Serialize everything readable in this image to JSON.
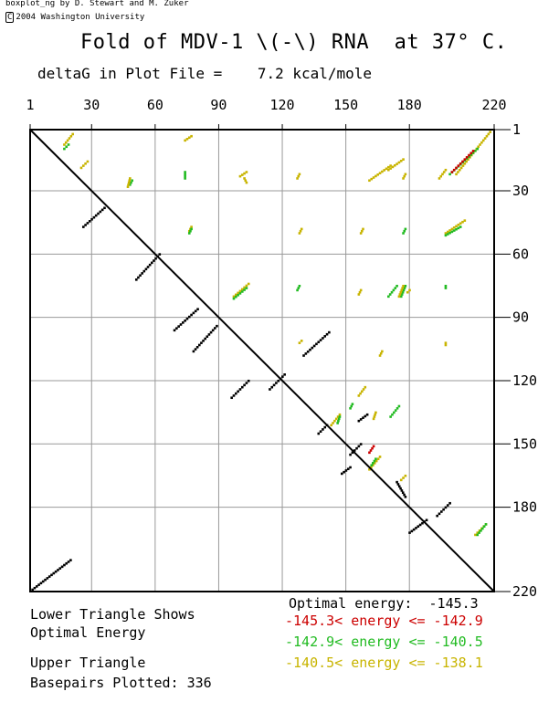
{
  "header": {
    "credit": "boxplot_ng by D. Stewart and M. Zuker",
    "copyright_symbol": "C",
    "copyright": "2004 Washington University",
    "title": "Fold of MDV-1 \\(-\\) RNA  at 37° C.",
    "deltag_label": "deltaG in Plot File =",
    "deltag_value": "7.2 kcal/mole"
  },
  "legend": {
    "lower_1": "Lower Triangle Shows",
    "lower_2": "Optimal Energy",
    "upper_1": "Upper Triangle",
    "basepairs_label": "Basepairs Plotted:",
    "basepairs_value": "336",
    "optimal": "Optimal energy:  -145.3",
    "bands": [
      {
        "text": "-145.3< energy <= -142.9",
        "color": "#cc0000"
      },
      {
        "text": "-142.9< energy <= -140.5",
        "color": "#22bb22"
      },
      {
        "text": "-140.5< energy <= -138.1",
        "color": "#c8b400"
      }
    ]
  },
  "chart_data": {
    "type": "scatter",
    "title": "Fold of MDV-1 \\(-\\) RNA  at 37° C.",
    "xlim": [
      1,
      220
    ],
    "ylim": [
      1,
      220
    ],
    "x_ticks": [
      1,
      30,
      60,
      90,
      120,
      150,
      180,
      220
    ],
    "y_ticks": [
      1,
      30,
      60,
      90,
      120,
      150,
      180,
      220
    ],
    "colors": {
      "optimal": "#000000",
      "red": "#cc0000",
      "green": "#22bb22",
      "yellow": "#c8b400",
      "grid": "#999999"
    },
    "optimal_helices": [
      [
        [
          2,
          219
        ],
        [
          20,
          205
        ]
      ],
      [
        [
          26,
          47
        ],
        [
          36,
          38
        ]
      ],
      [
        [
          51,
          72
        ],
        [
          62,
          60
        ]
      ],
      [
        [
          69,
          96
        ],
        [
          80,
          86
        ]
      ],
      [
        [
          78,
          106
        ],
        [
          89,
          94
        ]
      ],
      [
        [
          96,
          128
        ],
        [
          104,
          120
        ]
      ],
      [
        [
          114,
          124
        ],
        [
          121,
          117
        ]
      ],
      [
        [
          130,
          108
        ],
        [
          142,
          97
        ]
      ],
      [
        [
          137,
          145
        ],
        [
          141,
          141
        ]
      ],
      [
        [
          148,
          164
        ],
        [
          152,
          161
        ]
      ],
      [
        [
          152,
          155
        ],
        [
          157,
          150
        ]
      ],
      [
        [
          156,
          139
        ],
        [
          160,
          136
        ]
      ],
      [
        [
          174,
          168
        ],
        [
          178,
          175
        ]
      ],
      [
        [
          180,
          192
        ],
        [
          188,
          186
        ]
      ],
      [
        [
          193,
          184
        ],
        [
          199,
          178
        ]
      ]
    ],
    "upper_helices": [
      {
        "color": "yellow",
        "points": [
          [
            17,
            8
          ],
          [
            21,
            3
          ]
        ]
      },
      {
        "color": "green",
        "points": [
          [
            17,
            10
          ],
          [
            19,
            8
          ]
        ]
      },
      {
        "color": "yellow",
        "points": [
          [
            25,
            19
          ],
          [
            28,
            16
          ]
        ]
      },
      {
        "color": "yellow",
        "points": [
          [
            74,
            6
          ],
          [
            77,
            4
          ]
        ]
      },
      {
        "color": "green",
        "points": [
          [
            74,
            24
          ],
          [
            74,
            21
          ]
        ]
      },
      {
        "color": "yellow",
        "points": [
          [
            100,
            23
          ],
          [
            103,
            21
          ]
        ]
      },
      {
        "color": "yellow",
        "points": [
          [
            102,
            24
          ],
          [
            103,
            26
          ]
        ]
      },
      {
        "color": "yellow",
        "points": [
          [
            127,
            24
          ],
          [
            128,
            22
          ]
        ]
      },
      {
        "color": "green",
        "points": [
          [
            48,
            27
          ],
          [
            49,
            25
          ]
        ]
      },
      {
        "color": "yellow",
        "points": [
          [
            47,
            28
          ],
          [
            48,
            24
          ]
        ]
      },
      {
        "color": "yellow",
        "points": [
          [
            161,
            25
          ],
          [
            171,
            18
          ]
        ]
      },
      {
        "color": "yellow",
        "points": [
          [
            170,
            20
          ],
          [
            177,
            15
          ]
        ]
      },
      {
        "color": "yellow",
        "points": [
          [
            177,
            24
          ],
          [
            178,
            22
          ]
        ]
      },
      {
        "color": "yellow",
        "points": [
          [
            194,
            24
          ],
          [
            197,
            20
          ]
        ]
      },
      {
        "color": "yellow",
        "points": [
          [
            202,
            22
          ],
          [
            218,
            2
          ]
        ]
      },
      {
        "color": "green",
        "points": [
          [
            199,
            22
          ],
          [
            212,
            10
          ]
        ]
      },
      {
        "color": "red",
        "points": [
          [
            200,
            21
          ],
          [
            210,
            11
          ]
        ]
      },
      {
        "color": "yellow",
        "points": [
          [
            76,
            49
          ],
          [
            77,
            47
          ]
        ]
      },
      {
        "color": "green",
        "points": [
          [
            76,
            50
          ],
          [
            77,
            48
          ]
        ]
      },
      {
        "color": "yellow",
        "points": [
          [
            128,
            50
          ],
          [
            129,
            48
          ]
        ]
      },
      {
        "color": "yellow",
        "points": [
          [
            157,
            50
          ],
          [
            158,
            48
          ]
        ]
      },
      {
        "color": "green",
        "points": [
          [
            177,
            50
          ],
          [
            178,
            48
          ]
        ]
      },
      {
        "color": "yellow",
        "points": [
          [
            197,
            50
          ],
          [
            206,
            44
          ]
        ]
      },
      {
        "color": "green",
        "points": [
          [
            197,
            51
          ],
          [
            204,
            47
          ]
        ]
      },
      {
        "color": "yellow",
        "points": [
          [
            97,
            80
          ],
          [
            104,
            74
          ]
        ]
      },
      {
        "color": "green",
        "points": [
          [
            97,
            81
          ],
          [
            103,
            76
          ]
        ]
      },
      {
        "color": "green",
        "points": [
          [
            127,
            77
          ],
          [
            128,
            75
          ]
        ]
      },
      {
        "color": "yellow",
        "points": [
          [
            156,
            79
          ],
          [
            157,
            77
          ]
        ]
      },
      {
        "color": "green",
        "points": [
          [
            170,
            80
          ],
          [
            174,
            75
          ]
        ]
      },
      {
        "color": "green",
        "points": [
          [
            176,
            80
          ],
          [
            178,
            75
          ]
        ]
      },
      {
        "color": "yellow",
        "points": [
          [
            175,
            80
          ],
          [
            177,
            75
          ]
        ]
      },
      {
        "color": "yellow",
        "points": [
          [
            179,
            78
          ],
          [
            180,
            77
          ]
        ]
      },
      {
        "color": "green",
        "points": [
          [
            197,
            76
          ],
          [
            197,
            75
          ]
        ]
      },
      {
        "color": "yellow",
        "points": [
          [
            166,
            108
          ],
          [
            167,
            106
          ]
        ]
      },
      {
        "color": "yellow",
        "points": [
          [
            197,
            103
          ],
          [
            197,
            102
          ]
        ]
      },
      {
        "color": "yellow",
        "points": [
          [
            128,
            102
          ],
          [
            129,
            101
          ]
        ]
      },
      {
        "color": "yellow",
        "points": [
          [
            156,
            127
          ],
          [
            159,
            123
          ]
        ]
      },
      {
        "color": "green",
        "points": [
          [
            152,
            133
          ],
          [
            153,
            131
          ]
        ]
      },
      {
        "color": "yellow",
        "points": [
          [
            143,
            141
          ],
          [
            147,
            136
          ]
        ]
      },
      {
        "color": "green",
        "points": [
          [
            146,
            140
          ],
          [
            147,
            137
          ]
        ]
      },
      {
        "color": "yellow",
        "points": [
          [
            163,
            138
          ],
          [
            164,
            135
          ]
        ]
      },
      {
        "color": "green",
        "points": [
          [
            171,
            137
          ],
          [
            175,
            132
          ]
        ]
      },
      {
        "color": "red",
        "points": [
          [
            161,
            154
          ],
          [
            163,
            151
          ]
        ]
      },
      {
        "color": "yellow",
        "points": [
          [
            161,
            162
          ],
          [
            166,
            156
          ]
        ]
      },
      {
        "color": "green",
        "points": [
          [
            162,
            160
          ],
          [
            164,
            157
          ]
        ]
      },
      {
        "color": "yellow",
        "points": [
          [
            176,
            167
          ],
          [
            178,
            165
          ]
        ]
      },
      {
        "color": "yellow",
        "points": [
          [
            211,
            193
          ],
          [
            216,
            188
          ]
        ]
      },
      {
        "color": "green",
        "points": [
          [
            212,
            193
          ],
          [
            216,
            188
          ]
        ]
      }
    ]
  }
}
